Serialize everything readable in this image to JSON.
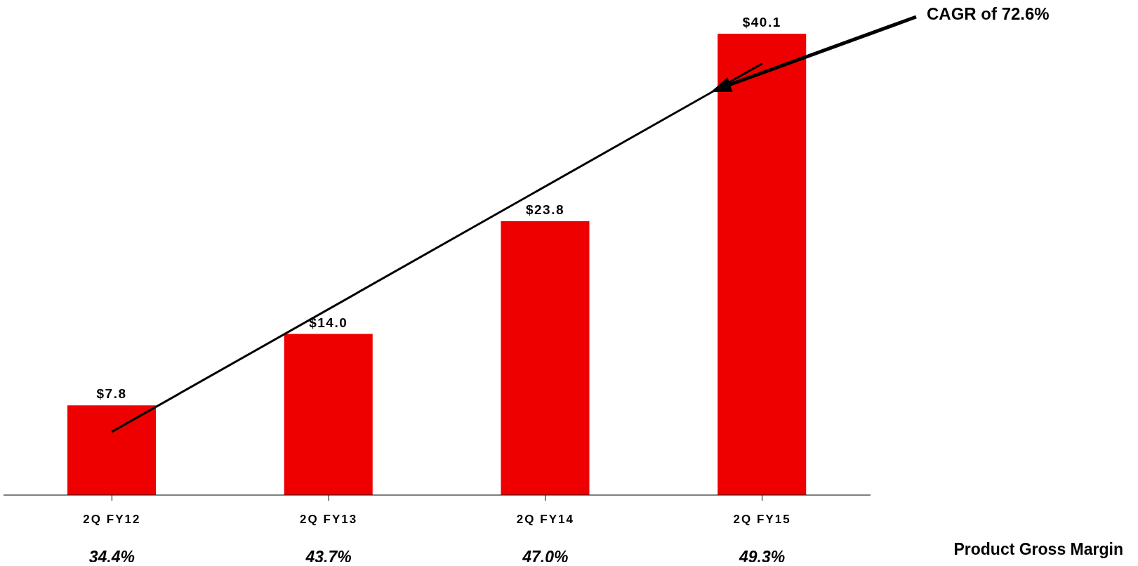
{
  "chart_data": {
    "type": "bar",
    "categories": [
      "2Q FY12",
      "2Q FY13",
      "2Q FY14",
      "2Q FY15"
    ],
    "series": [
      {
        "color": "#ee0000",
        "values": [
          7.8,
          14.0,
          23.8,
          40.1
        ],
        "value_labels": [
          "$7.8",
          "$14.0",
          "$23.8",
          "$40.1"
        ]
      },
      {
        "type": "line",
        "color": "#000000",
        "x": [
          "2Q FY12",
          "2Q FY15"
        ],
        "values": [
          5.5,
          37.5
        ]
      }
    ],
    "grid": false,
    "legend": false,
    "annotations": [
      "CAGR of 72.6%",
      "Product Gross Margin",
      "34.4%",
      "43.7%",
      "47.0%",
      "49.3%"
    ]
  }
}
